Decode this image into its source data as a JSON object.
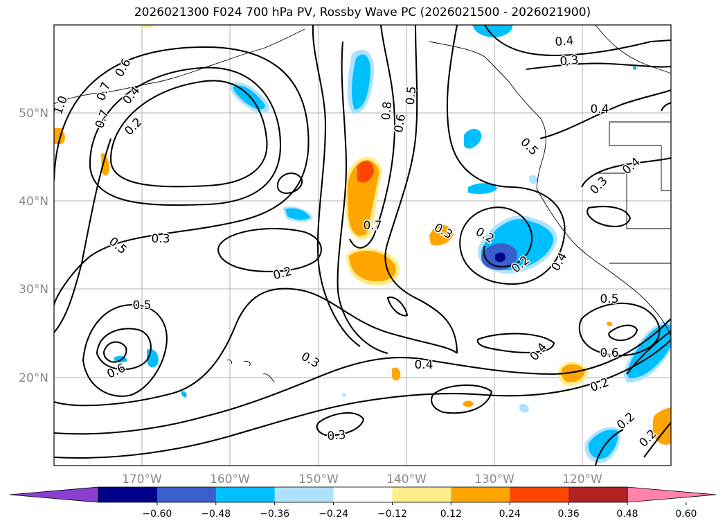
{
  "title": "2026021300 F024 700 hPa PV, Rossby Wave PC (2026021500 - 2026021900)",
  "map": {
    "lon_ticks": [
      "170°W",
      "160°W",
      "150°W",
      "140°W",
      "130°W",
      "120°W"
    ],
    "lat_ticks": [
      "50°N",
      "40°N",
      "30°N",
      "20°N"
    ],
    "contour_labels": [
      "0.6",
      "0.4",
      "0.2",
      "1.0",
      "0.7",
      "0.7",
      "0.8",
      "0.6",
      "0.5",
      "0.4",
      "0.3",
      "0.4",
      "0.5",
      "0.3",
      "0.4",
      "0.5",
      "0.3",
      "0.2",
      "0.7",
      "0.3",
      "0.2",
      "0.2",
      "0.4",
      "0.5",
      "0.5",
      "0.6",
      "0.3",
      "0.4",
      "0.4",
      "0.2",
      "0.6",
      "0.3",
      "0.2",
      "0.2"
    ]
  },
  "colorbar": {
    "colors": [
      "#8a3fd0",
      "#00008b",
      "#3a5fcd",
      "#00bfff",
      "#b0e2ff",
      "#ffffff",
      "#ffec8b",
      "#ffa500",
      "#ff4500",
      "#b22222",
      "#ff82ab"
    ],
    "labels": [
      "−0.60",
      "−0.48",
      "−0.36",
      "−0.24",
      "−0.12",
      "0.12",
      "0.24",
      "0.36",
      "0.48",
      "0.60"
    ]
  }
}
